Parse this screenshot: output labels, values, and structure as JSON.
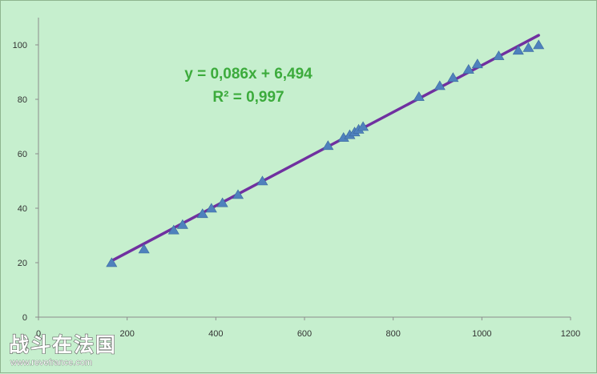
{
  "chart_data": {
    "type": "scatter",
    "title": "",
    "xlabel": "",
    "ylabel": "",
    "xlim": [
      0,
      1200
    ],
    "ylim": [
      0,
      110
    ],
    "x_ticks": [
      0,
      200,
      400,
      600,
      800,
      1000,
      1200
    ],
    "y_ticks": [
      0,
      20,
      40,
      60,
      80,
      100
    ],
    "x_tick_labels": [
      "0",
      "200",
      "400",
      "600",
      "800",
      "1000",
      "1200"
    ],
    "y_tick_labels": [
      "0",
      "20",
      "40",
      "60",
      "80",
      "100"
    ],
    "grid": false,
    "legend": "none",
    "marker": "triangle",
    "marker_color": "#4f81bd",
    "series": [
      {
        "x": [
          165,
          238,
          305,
          325,
          370,
          390,
          415,
          450,
          505,
          653,
          688,
          702,
          713,
          722,
          732,
          858,
          905,
          935,
          970,
          990,
          1038,
          1082,
          1105,
          1128
        ],
        "y": [
          20,
          25,
          32,
          34,
          38,
          40,
          42,
          45,
          50,
          63,
          66,
          67,
          68,
          69,
          70,
          81,
          85,
          88,
          91,
          93,
          96,
          98,
          99,
          100
        ]
      }
    ],
    "trendline": {
      "type": "linear",
      "slope": 0.086,
      "intercept": 6.494,
      "x_range": [
        165,
        1128
      ],
      "color": "#7030a0",
      "equation": "y = 0,086x + 6,494",
      "r_squared": "R² = 0,997"
    }
  },
  "watermark": {
    "text": "战斗在法国",
    "url": "www.revefrance.com"
  }
}
